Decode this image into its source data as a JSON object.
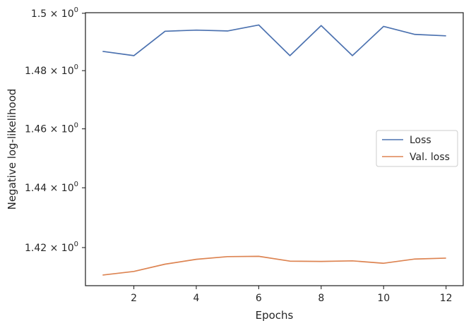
{
  "chart_data": {
    "type": "line",
    "title": "",
    "xlabel": "Epochs",
    "ylabel": "Negative log-likelihood",
    "yscale": "log",
    "xlim": [
      0.45,
      12.55
    ],
    "ylim": [
      1.4074,
      1.5002
    ],
    "x_ticks": [
      2,
      4,
      6,
      8,
      10,
      12
    ],
    "x_tick_labels": [
      "2",
      "4",
      "6",
      "8",
      "10",
      "12"
    ],
    "y_ticks": [
      1.42,
      1.44,
      1.46,
      1.48,
      1.5
    ],
    "y_tick_labels": [
      {
        "mantissa": "1.42",
        "base": "10",
        "exp": "0"
      },
      {
        "mantissa": "1.44",
        "base": "10",
        "exp": "0"
      },
      {
        "mantissa": "1.46",
        "base": "10",
        "exp": "0"
      },
      {
        "mantissa": "1.48",
        "base": "10",
        "exp": "0"
      },
      {
        "mantissa": "1.5",
        "base": "10",
        "exp": "0"
      }
    ],
    "x": [
      1,
      2,
      3,
      4,
      5,
      6,
      7,
      8,
      9,
      10,
      11,
      12
    ],
    "series": [
      {
        "name": "Loss",
        "color": "#4c72b0",
        "values": [
          1.4867,
          1.4852,
          1.4937,
          1.4941,
          1.4938,
          1.4959,
          1.4852,
          1.4957,
          1.4852,
          1.4954,
          1.4926,
          1.4921
        ]
      },
      {
        "name": "Val. loss",
        "color": "#dd8452",
        "values": [
          1.4109,
          1.4121,
          1.4145,
          1.4161,
          1.417,
          1.4171,
          1.4155,
          1.4154,
          1.4156,
          1.4148,
          1.4162,
          1.4165
        ]
      }
    ],
    "grid": false,
    "legend_position": "center-right"
  }
}
